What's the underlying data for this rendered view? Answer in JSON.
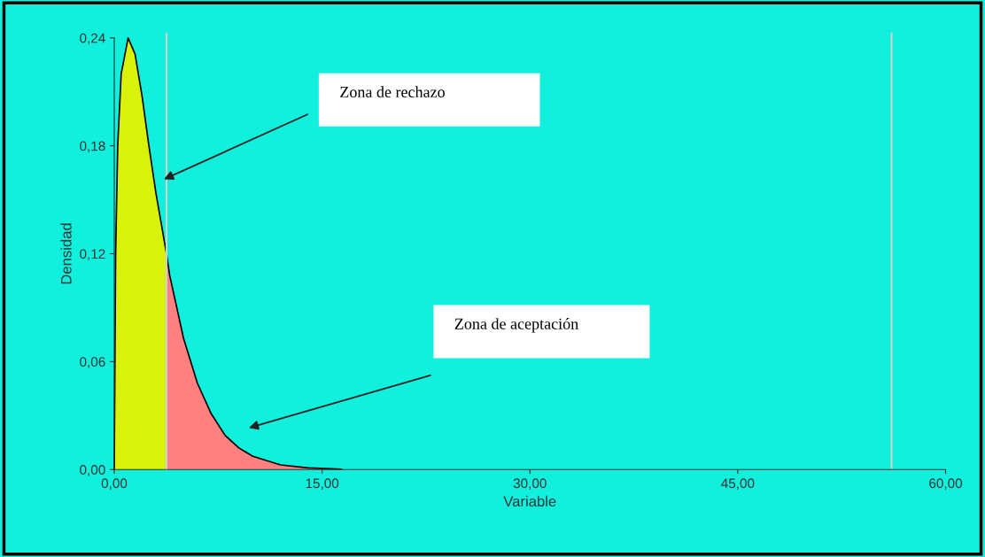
{
  "chart_data": {
    "type": "area",
    "xlabel": "Variable",
    "ylabel": "Densidad",
    "series": [
      {
        "color": "#d9f20a",
        "x": [
          0,
          0.1,
          0.25,
          0.5,
          1.0,
          1.5,
          2.0,
          2.5,
          3.0,
          3.77
        ],
        "values": [
          0,
          0.12,
          0.18,
          0.22,
          0.24,
          0.231,
          0.208,
          0.18,
          0.154,
          0.12
        ]
      },
      {
        "color": "#ff8080",
        "x": [
          3.77,
          4,
          5,
          6,
          7,
          8,
          9,
          10,
          12,
          14,
          16,
          16.4
        ],
        "values": [
          0.12,
          0.108,
          0.073,
          0.048,
          0.031,
          0.019,
          0.012,
          0.0074,
          0.0026,
          0.0009,
          0.0003,
          0.0002
        ]
      }
    ],
    "xlim": [
      0,
      60
    ],
    "ylim": [
      0,
      0.24
    ],
    "xticks": [
      {
        "value": 0,
        "label": "0,00"
      },
      {
        "value": 15,
        "label": "15,00"
      },
      {
        "value": 30,
        "label": "30,00"
      },
      {
        "value": 45,
        "label": "45,00"
      },
      {
        "value": 60,
        "label": "60,00"
      }
    ],
    "yticks": [
      {
        "value": 0,
        "label": "0,00"
      },
      {
        "value": 0.06,
        "label": "0,06"
      },
      {
        "value": 0.12,
        "label": "0,12"
      },
      {
        "value": 0.18,
        "label": "0,18"
      },
      {
        "value": 0.24,
        "label": "0,24"
      }
    ],
    "ref_lines": [
      {
        "axis": "x",
        "value": 3.77,
        "color": "#d0d0d0"
      },
      {
        "axis": "x",
        "value": 56.1,
        "color": "#d0d0d0"
      }
    ],
    "annotations": [
      "Zona de rechazo",
      "Zona de aceptación"
    ],
    "grid": false
  }
}
